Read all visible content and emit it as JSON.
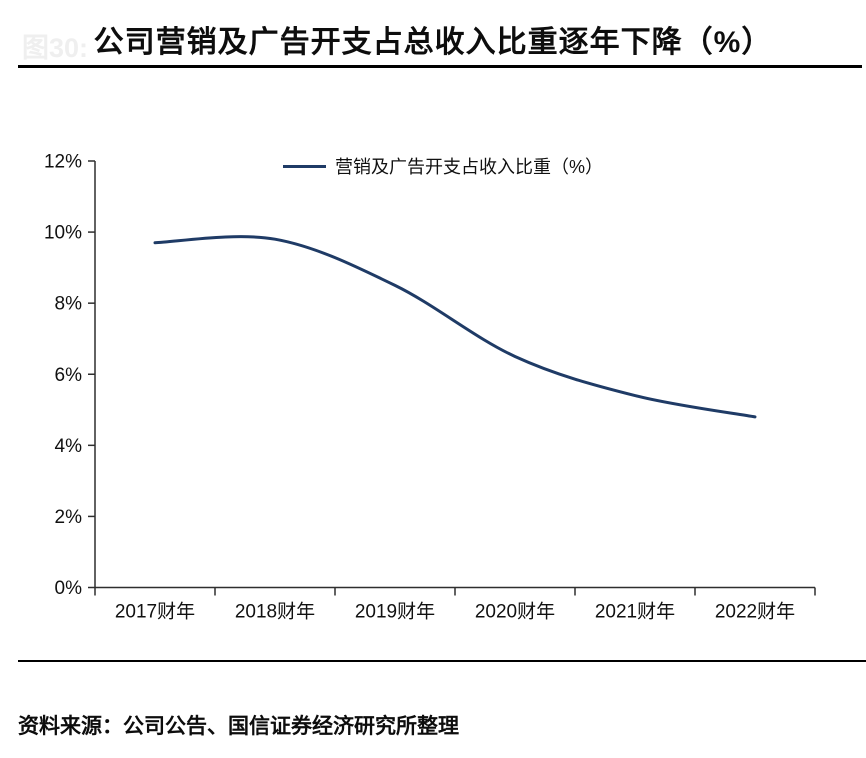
{
  "page": {
    "figure_label": "图30:",
    "title": "公司营销及广告开支占总收入比重逐年下降（%）",
    "source": "资料来源：公司公告、国信证券经济研究所整理"
  },
  "legend": {
    "label": "营销及广告开支占收入比重（%）"
  },
  "colors": {
    "line": "#1f3b66",
    "axis": "#2e2e2e",
    "text": "#111111"
  },
  "chart_data": {
    "type": "line",
    "title": "公司营销及广告开支占总收入比重逐年下降（%）",
    "categories": [
      "2017财年",
      "2018财年",
      "2019财年",
      "2020财年",
      "2021财年",
      "2022财年"
    ],
    "series": [
      {
        "name": "营销及广告开支占收入比重（%）",
        "values": [
          9.7,
          9.8,
          8.5,
          6.5,
          5.4,
          4.8
        ]
      }
    ],
    "xlabel": "",
    "ylabel": "",
    "ylim": [
      0,
      12
    ],
    "yticks": [
      0,
      2,
      4,
      6,
      8,
      10,
      12
    ],
    "ytick_labels": [
      "0%",
      "2%",
      "4%",
      "6%",
      "8%",
      "10%",
      "12%"
    ],
    "grid": false,
    "smooth": true,
    "legend_position": "top"
  }
}
